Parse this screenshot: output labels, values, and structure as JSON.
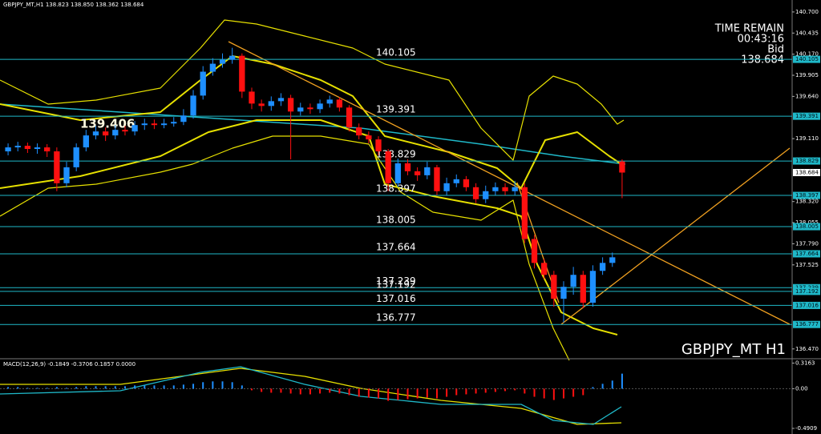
{
  "chart_data": [
    {
      "type": "candlestick",
      "title": "GBPJPY_MT,H1 138.823 138.850 138.362 138.684",
      "watermark": "GBPJPY_MT H1",
      "timer_label": "TIME REMAIN",
      "timer": "00:43:16",
      "bid_label": "Bid",
      "bid": 138.684,
      "marker_label": 139.406,
      "up_color": "#1e8fff",
      "down_color": "#ff1010",
      "level_color": "#1fb8c8",
      "ylim": [
        136.357,
        140.85
      ],
      "yticks": [
        {
          "value": 140.7,
          "label": "140.700"
        },
        140.435,
        {
          "value": 140.17,
          "label": "140.170"
        },
        139.905,
        {
          "value": 139.64,
          "label": "139.640"
        },
        {
          "value": 139.11,
          "label": "139.110"
        },
        {
          "value": 138.32,
          "label": "138.320"
        },
        138.055,
        {
          "value": 137.79,
          "label": "137.790"
        },
        137.525,
        {
          "value": 136.47,
          "label": "136.470"
        }
      ],
      "levels": [
        140.105,
        139.391,
        138.829,
        138.397,
        138.005,
        137.664,
        137.239,
        137.192,
        137.016,
        136.777
      ],
      "open": [
        138.95,
        139.0,
        139.02,
        138.98,
        139.0,
        138.95,
        138.55,
        138.75,
        139.0,
        139.15,
        139.2,
        139.15,
        139.22,
        139.2,
        139.28,
        139.3,
        139.28,
        139.3,
        139.32,
        139.4,
        139.65,
        139.95,
        140.05,
        140.1,
        140.15,
        139.7,
        139.55,
        139.52,
        139.58,
        139.62,
        139.45,
        139.5,
        139.48,
        139.55,
        139.6,
        139.5,
        139.25,
        139.15,
        139.1,
        138.95,
        138.55,
        138.8,
        138.7,
        138.65,
        138.75,
        138.45,
        138.55,
        138.6,
        138.5,
        138.35,
        138.45,
        138.5,
        138.45,
        138.5,
        137.85,
        137.55,
        137.4,
        137.1,
        137.25,
        137.4,
        137.05,
        137.45,
        137.55,
        138.823
      ],
      "high": [
        139.05,
        139.07,
        139.06,
        139.05,
        139.04,
        139.0,
        138.82,
        139.05,
        139.22,
        139.27,
        139.25,
        139.28,
        139.27,
        139.33,
        139.36,
        139.35,
        139.36,
        139.38,
        139.48,
        139.72,
        140.02,
        140.12,
        140.18,
        140.25,
        140.18,
        139.75,
        139.6,
        139.64,
        139.68,
        139.66,
        139.56,
        139.55,
        139.6,
        139.65,
        139.63,
        139.53,
        139.3,
        139.2,
        139.14,
        138.98,
        138.86,
        138.85,
        138.75,
        138.82,
        138.78,
        138.62,
        138.66,
        138.64,
        138.55,
        138.52,
        138.56,
        138.55,
        138.58,
        138.55,
        137.9,
        137.6,
        137.45,
        137.32,
        137.5,
        137.45,
        137.52,
        137.62,
        137.68,
        138.85
      ],
      "low": [
        138.9,
        138.95,
        138.93,
        138.92,
        138.88,
        138.45,
        138.5,
        138.7,
        138.95,
        139.1,
        139.08,
        139.1,
        139.15,
        139.15,
        139.22,
        139.23,
        139.24,
        139.26,
        139.28,
        139.36,
        139.6,
        139.9,
        140.0,
        140.05,
        139.62,
        139.48,
        139.45,
        139.46,
        139.52,
        138.85,
        139.4,
        139.42,
        139.43,
        139.5,
        139.45,
        139.2,
        139.1,
        139.05,
        138.9,
        138.45,
        138.5,
        138.65,
        138.58,
        138.6,
        138.4,
        138.4,
        138.5,
        138.45,
        138.3,
        138.3,
        138.4,
        138.4,
        138.4,
        137.8,
        137.48,
        137.35,
        137.0,
        136.8,
        137.15,
        136.98,
        137.0,
        137.4,
        137.5,
        138.362
      ],
      "close": [
        139.0,
        139.02,
        138.98,
        139.0,
        138.95,
        138.55,
        138.75,
        139.0,
        139.15,
        139.2,
        139.15,
        139.22,
        139.2,
        139.28,
        139.3,
        139.28,
        139.3,
        139.32,
        139.4,
        139.65,
        139.95,
        140.05,
        140.1,
        140.15,
        139.7,
        139.55,
        139.52,
        139.58,
        139.62,
        139.45,
        139.5,
        139.48,
        139.55,
        139.6,
        139.5,
        139.25,
        139.15,
        139.1,
        138.95,
        138.55,
        138.8,
        138.7,
        138.65,
        138.75,
        138.45,
        138.55,
        138.6,
        138.5,
        138.35,
        138.45,
        138.5,
        138.45,
        138.5,
        137.85,
        137.55,
        137.4,
        137.1,
        137.25,
        137.4,
        137.05,
        137.45,
        137.55,
        137.62,
        138.684
      ]
    },
    {
      "type": "bar",
      "title": "MACD(12,26,9) -0.1849 -0.3706 0.1857 0.0000",
      "up_color": "#1e8fff",
      "down_color": "#ff1010",
      "ylim": [
        -0.56,
        0.36
      ],
      "yticks": [
        0.3163,
        {
          "value": 0,
          "label": "0.00"
        },
        -0.4909
      ],
      "values": [
        0.02,
        0.02,
        0.01,
        0.01,
        0.01,
        0.02,
        0.01,
        0.02,
        0.03,
        0.03,
        0.03,
        0.03,
        0.03,
        0.04,
        0.04,
        0.04,
        0.04,
        0.04,
        0.05,
        0.06,
        0.08,
        0.09,
        0.09,
        0.08,
        0.04,
        -0.02,
        -0.04,
        -0.05,
        -0.05,
        -0.06,
        -0.07,
        -0.07,
        -0.06,
        -0.05,
        -0.06,
        -0.08,
        -0.1,
        -0.11,
        -0.12,
        -0.15,
        -0.14,
        -0.13,
        -0.12,
        -0.11,
        -0.12,
        -0.1,
        -0.08,
        -0.07,
        -0.06,
        -0.05,
        -0.04,
        -0.03,
        -0.02,
        -0.06,
        -0.1,
        -0.12,
        -0.14,
        -0.12,
        -0.1,
        -0.08,
        0.02,
        0.06,
        0.1,
        0.1857
      ]
    }
  ]
}
